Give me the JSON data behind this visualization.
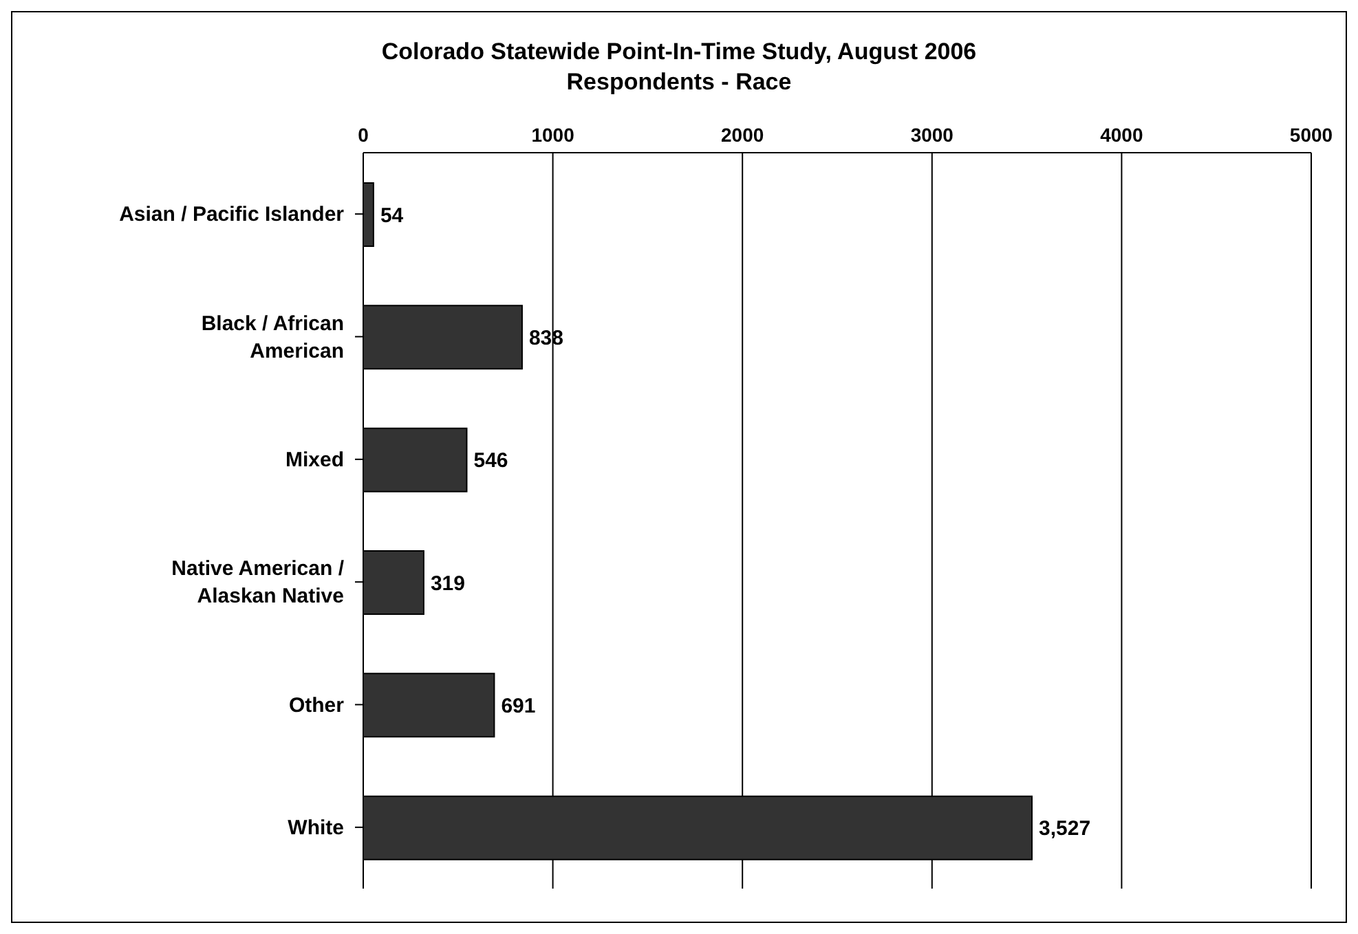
{
  "chart_data": {
    "type": "bar",
    "title": "Colorado Statewide Point-In-Time Study, August 2006",
    "subtitle": "Respondents - Race",
    "orientation": "horizontal",
    "categories": [
      "Asian / Pacific Islander",
      "Black / African American",
      "Mixed",
      "Native American / Alaskan Native",
      "Other",
      "White"
    ],
    "values": [
      54,
      838,
      546,
      319,
      691,
      3527
    ],
    "value_labels": [
      "54",
      "838",
      "546",
      "319",
      "691",
      "3,527"
    ],
    "color": "#333333",
    "xlim": [
      0,
      5000
    ],
    "xticks": [
      0,
      1000,
      2000,
      3000,
      4000,
      5000
    ],
    "grid": "x"
  }
}
